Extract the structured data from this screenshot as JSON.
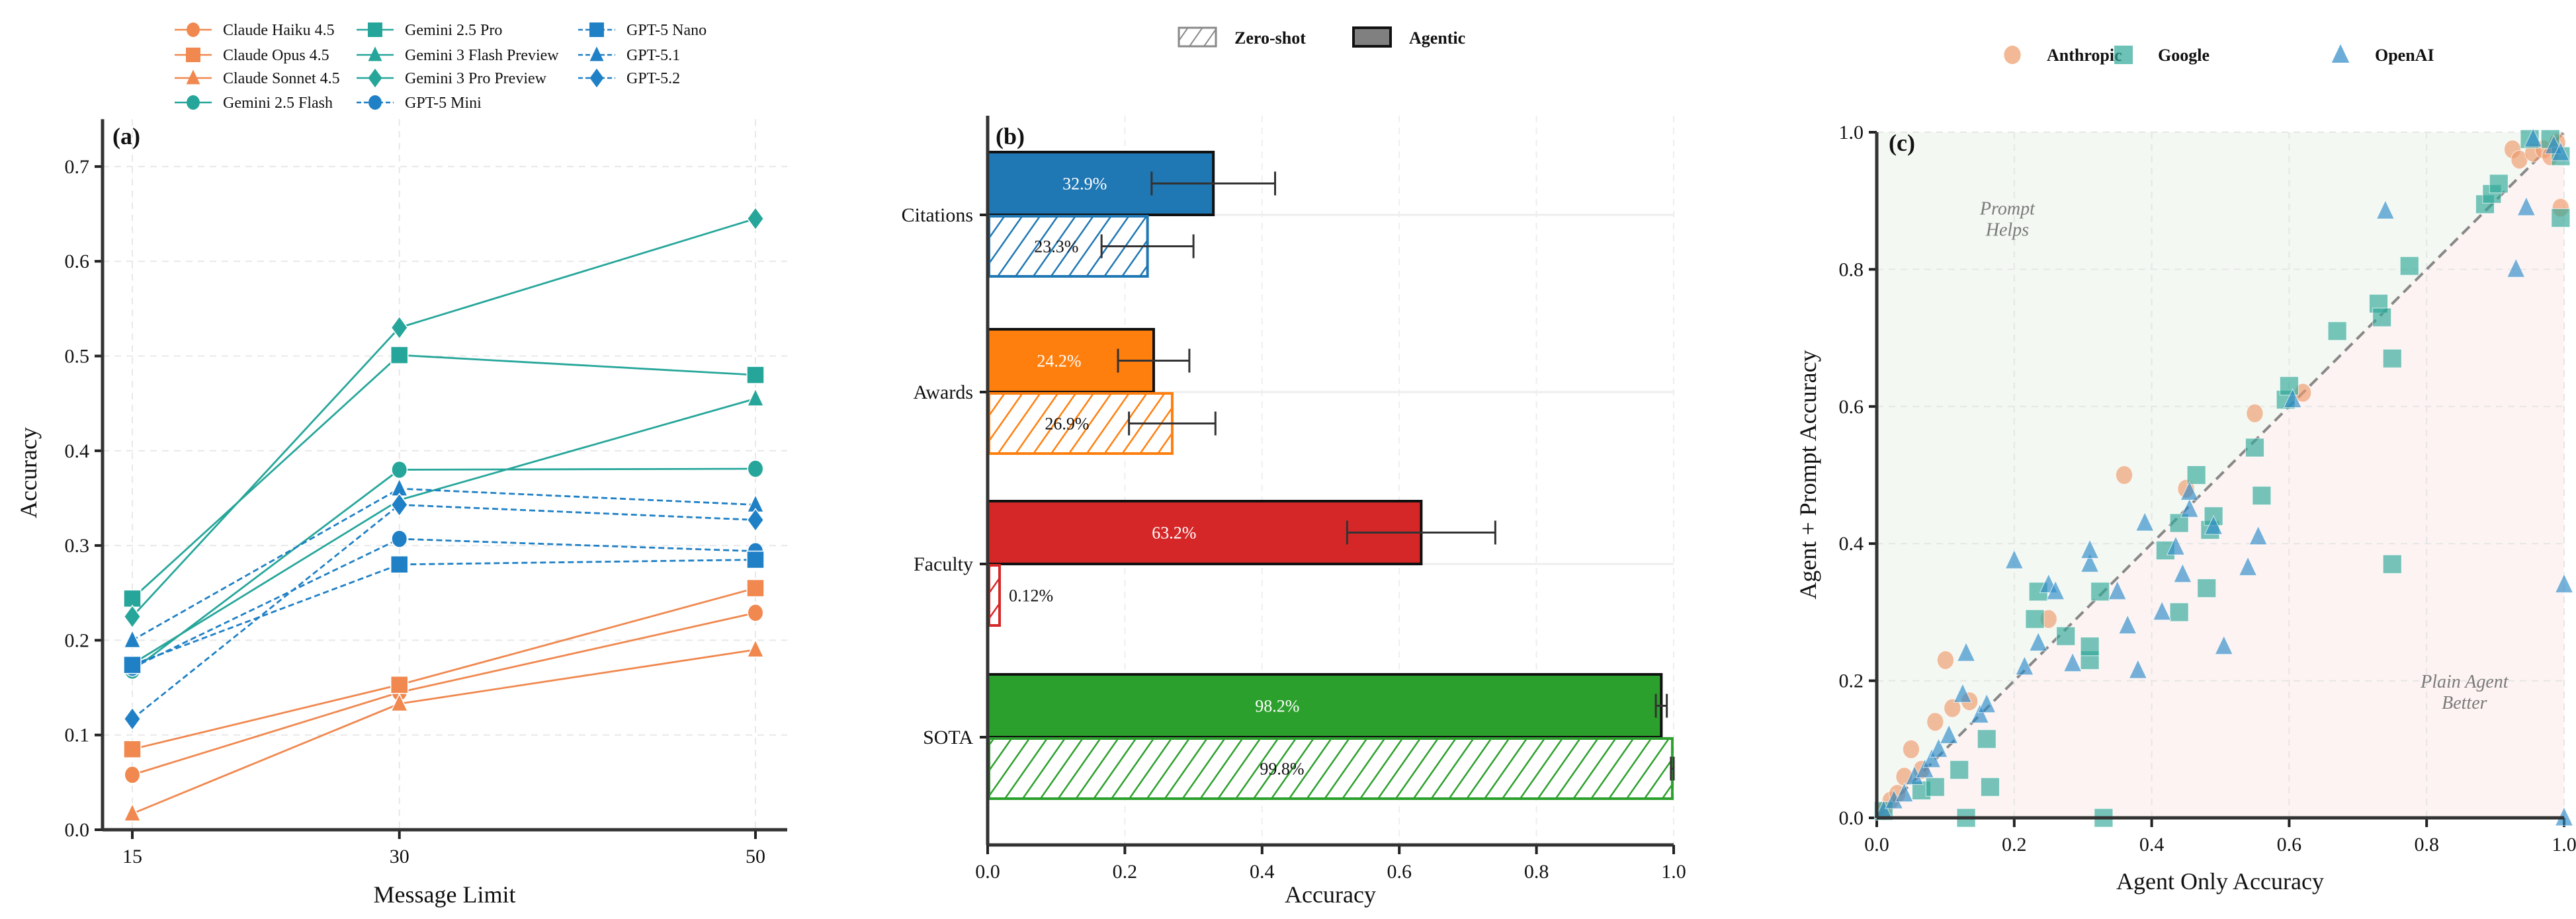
{
  "chart_data": [
    {
      "panel_label": "(a)",
      "type": "line",
      "xlabel": "Message Limit",
      "ylabel": "Accuracy",
      "x": [
        15,
        30,
        50
      ],
      "xticks": [
        "15",
        "30",
        "50"
      ],
      "yticks": [
        "0.0",
        "0.1",
        "0.2",
        "0.3",
        "0.4",
        "0.5",
        "0.6",
        "0.7"
      ],
      "ylim": [
        0,
        0.75
      ],
      "grid": true,
      "legend_position": "top",
      "series": [
        {
          "name": "Claude Haiku 4.5",
          "provider": "Anthropic",
          "marker": "circle",
          "linestyle": "solid",
          "values": [
            0.058,
            0.145,
            0.229
          ]
        },
        {
          "name": "Claude Opus 4.5",
          "provider": "Anthropic",
          "marker": "square",
          "linestyle": "solid",
          "values": [
            0.085,
            0.153,
            0.255
          ]
        },
        {
          "name": "Claude Sonnet 4.5",
          "provider": "Anthropic",
          "marker": "triangle",
          "linestyle": "solid",
          "values": [
            0.017,
            0.133,
            0.19
          ]
        },
        {
          "name": "Gemini 2.5 Flash",
          "provider": "Google",
          "marker": "circle",
          "linestyle": "solid",
          "values": [
            0.168,
            0.38,
            0.381
          ]
        },
        {
          "name": "Gemini 2.5 Pro",
          "provider": "Google",
          "marker": "square",
          "linestyle": "solid",
          "values": [
            0.244,
            0.501,
            0.48
          ]
        },
        {
          "name": "Gemini 3 Flash Preview",
          "provider": "Google",
          "marker": "triangle",
          "linestyle": "solid",
          "values": [
            0.175,
            0.348,
            0.455
          ]
        },
        {
          "name": "Gemini 3 Pro Preview",
          "provider": "Google",
          "marker": "diamond",
          "linestyle": "solid",
          "values": [
            0.225,
            0.53,
            0.645
          ]
        },
        {
          "name": "GPT-5 Mini",
          "provider": "OpenAI",
          "marker": "circle",
          "linestyle": "dashed",
          "values": [
            0.171,
            0.307,
            0.294
          ]
        },
        {
          "name": "GPT-5 Nano",
          "provider": "OpenAI",
          "marker": "square",
          "linestyle": "dashed",
          "values": [
            0.174,
            0.28,
            0.285
          ]
        },
        {
          "name": "GPT-5.1",
          "provider": "OpenAI",
          "marker": "triangle",
          "linestyle": "dashed",
          "values": [
            0.2,
            0.36,
            0.343
          ]
        },
        {
          "name": "GPT-5.2",
          "provider": "OpenAI",
          "marker": "diamond",
          "linestyle": "dashed",
          "values": [
            0.117,
            0.343,
            0.327
          ]
        }
      ]
    },
    {
      "panel_label": "(b)",
      "type": "bar",
      "orientation": "horizontal",
      "xlabel": "Accuracy",
      "xlim": [
        0,
        1
      ],
      "xticks": [
        "0.0",
        "0.2",
        "0.4",
        "0.6",
        "0.8",
        "1.0"
      ],
      "categories": [
        "Citations",
        "Awards",
        "Faculty",
        "SOTA"
      ],
      "category_colors": [
        "#1f77b4",
        "#ff7f0e",
        "#d62728",
        "#2ca02c"
      ],
      "legend_position": "top",
      "series": [
        {
          "name": "Agentic",
          "style": "solid",
          "values": [
            0.329,
            0.242,
            0.632,
            0.982
          ],
          "errors": [
            0.09,
            0.052,
            0.108,
            0.008
          ],
          "labels": [
            "32.9%",
            "24.2%",
            "63.2%",
            "98.2%"
          ]
        },
        {
          "name": "Zero-shot",
          "style": "hatched",
          "values": [
            0.233,
            0.269,
            0.0012,
            0.998
          ],
          "errors": [
            0.067,
            0.063,
            null,
            0.002
          ],
          "labels": [
            "23.3%",
            "26.9%",
            "0.12%",
            "99.8%"
          ]
        }
      ]
    },
    {
      "panel_label": "(c)",
      "type": "scatter",
      "xlabel": "Agent Only Accuracy",
      "ylabel": "Agent + Prompt Accuracy",
      "xlim": [
        0,
        1
      ],
      "ylim": [
        0,
        1
      ],
      "xticks": [
        "0.0",
        "0.2",
        "0.4",
        "0.6",
        "0.8",
        "1.0"
      ],
      "yticks": [
        "0.0",
        "0.2",
        "0.4",
        "0.6",
        "0.8",
        "1.0"
      ],
      "reference_line": "y = x",
      "region_labels": {
        "above": [
          "Prompt",
          "Helps"
        ],
        "below": [
          "Plain Agent",
          "Better"
        ]
      },
      "legend_position": "top",
      "series": [
        {
          "name": "Anthropic",
          "marker": "circle",
          "points": [
            [
              0.01,
              0.01
            ],
            [
              0.02,
              0.025
            ],
            [
              0.03,
              0.035
            ],
            [
              0.04,
              0.06
            ],
            [
              0.05,
              0.1
            ],
            [
              0.065,
              0.07
            ],
            [
              0.085,
              0.14
            ],
            [
              0.1,
              0.23
            ],
            [
              0.11,
              0.16
            ],
            [
              0.135,
              0.17
            ],
            [
              0.25,
              0.29
            ],
            [
              0.36,
              0.5
            ],
            [
              0.45,
              0.48
            ],
            [
              0.55,
              0.59
            ],
            [
              0.62,
              0.62
            ],
            [
              0.925,
              0.975
            ],
            [
              0.935,
              0.96
            ],
            [
              0.955,
              0.97
            ],
            [
              0.97,
              0.975
            ],
            [
              0.98,
              0.965
            ],
            [
              0.99,
              0.985
            ],
            [
              0.995,
              0.89
            ]
          ]
        },
        {
          "name": "Google",
          "marker": "square",
          "points": [
            [
              0.01,
              0.01
            ],
            [
              0.065,
              0.04
            ],
            [
              0.085,
              0.045
            ],
            [
              0.12,
              0.07
            ],
            [
              0.13,
              0.0
            ],
            [
              0.165,
              0.045
            ],
            [
              0.16,
              0.115
            ],
            [
              0.23,
              0.29
            ],
            [
              0.235,
              0.33
            ],
            [
              0.275,
              0.265
            ],
            [
              0.31,
              0.23
            ],
            [
              0.31,
              0.25
            ],
            [
              0.325,
              0.33
            ],
            [
              0.33,
              0.0
            ],
            [
              0.42,
              0.39
            ],
            [
              0.44,
              0.43
            ],
            [
              0.44,
              0.3
            ],
            [
              0.465,
              0.5
            ],
            [
              0.485,
              0.42
            ],
            [
              0.48,
              0.335
            ],
            [
              0.49,
              0.44
            ],
            [
              0.55,
              0.54
            ],
            [
              0.56,
              0.47
            ],
            [
              0.595,
              0.61
            ],
            [
              0.6,
              0.63
            ],
            [
              0.67,
              0.71
            ],
            [
              0.73,
              0.75
            ],
            [
              0.735,
              0.73
            ],
            [
              0.75,
              0.67
            ],
            [
              0.75,
              0.37
            ],
            [
              0.775,
              0.805
            ],
            [
              0.885,
              0.895
            ],
            [
              0.895,
              0.91
            ],
            [
              0.905,
              0.925
            ],
            [
              0.95,
              0.99
            ],
            [
              0.98,
              0.99
            ],
            [
              0.995,
              0.875
            ],
            [
              0.995,
              0.965
            ]
          ]
        },
        {
          "name": "OpenAI",
          "marker": "triangle",
          "points": [
            [
              0.01,
              0.01
            ],
            [
              0.025,
              0.025
            ],
            [
              0.04,
              0.035
            ],
            [
              0.055,
              0.06
            ],
            [
              0.07,
              0.07
            ],
            [
              0.08,
              0.085
            ],
            [
              0.09,
              0.1
            ],
            [
              0.105,
              0.12
            ],
            [
              0.125,
              0.18
            ],
            [
              0.13,
              0.24
            ],
            [
              0.15,
              0.15
            ],
            [
              0.16,
              0.165
            ],
            [
              0.2,
              0.375
            ],
            [
              0.215,
              0.22
            ],
            [
              0.235,
              0.255
            ],
            [
              0.25,
              0.34
            ],
            [
              0.26,
              0.33
            ],
            [
              0.285,
              0.225
            ],
            [
              0.31,
              0.37
            ],
            [
              0.31,
              0.39
            ],
            [
              0.35,
              0.33
            ],
            [
              0.365,
              0.28
            ],
            [
              0.38,
              0.215
            ],
            [
              0.39,
              0.43
            ],
            [
              0.415,
              0.3
            ],
            [
              0.435,
              0.395
            ],
            [
              0.445,
              0.355
            ],
            [
              0.455,
              0.45
            ],
            [
              0.455,
              0.475
            ],
            [
              0.49,
              0.425
            ],
            [
              0.505,
              0.25
            ],
            [
              0.54,
              0.365
            ],
            [
              0.555,
              0.41
            ],
            [
              0.605,
              0.61
            ],
            [
              0.74,
              0.885
            ],
            [
              0.93,
              0.8
            ],
            [
              0.945,
              0.89
            ],
            [
              0.955,
              0.99
            ],
            [
              0.985,
              0.98
            ],
            [
              0.995,
              0.97
            ],
            [
              1.0,
              0.34
            ],
            [
              1.0,
              0.0
            ]
          ]
        }
      ]
    }
  ],
  "colors": {
    "Anthropic": "#f0884f",
    "Google": "#26a69a",
    "OpenAI": "#1f80c6",
    "scatter_Anthropic": "#ee9a6a",
    "scatter_Google": "#2fa898",
    "scatter_OpenAI": "#2c8ac7",
    "region_above": "#f3f8f2",
    "region_below": "#fdf3f2"
  }
}
